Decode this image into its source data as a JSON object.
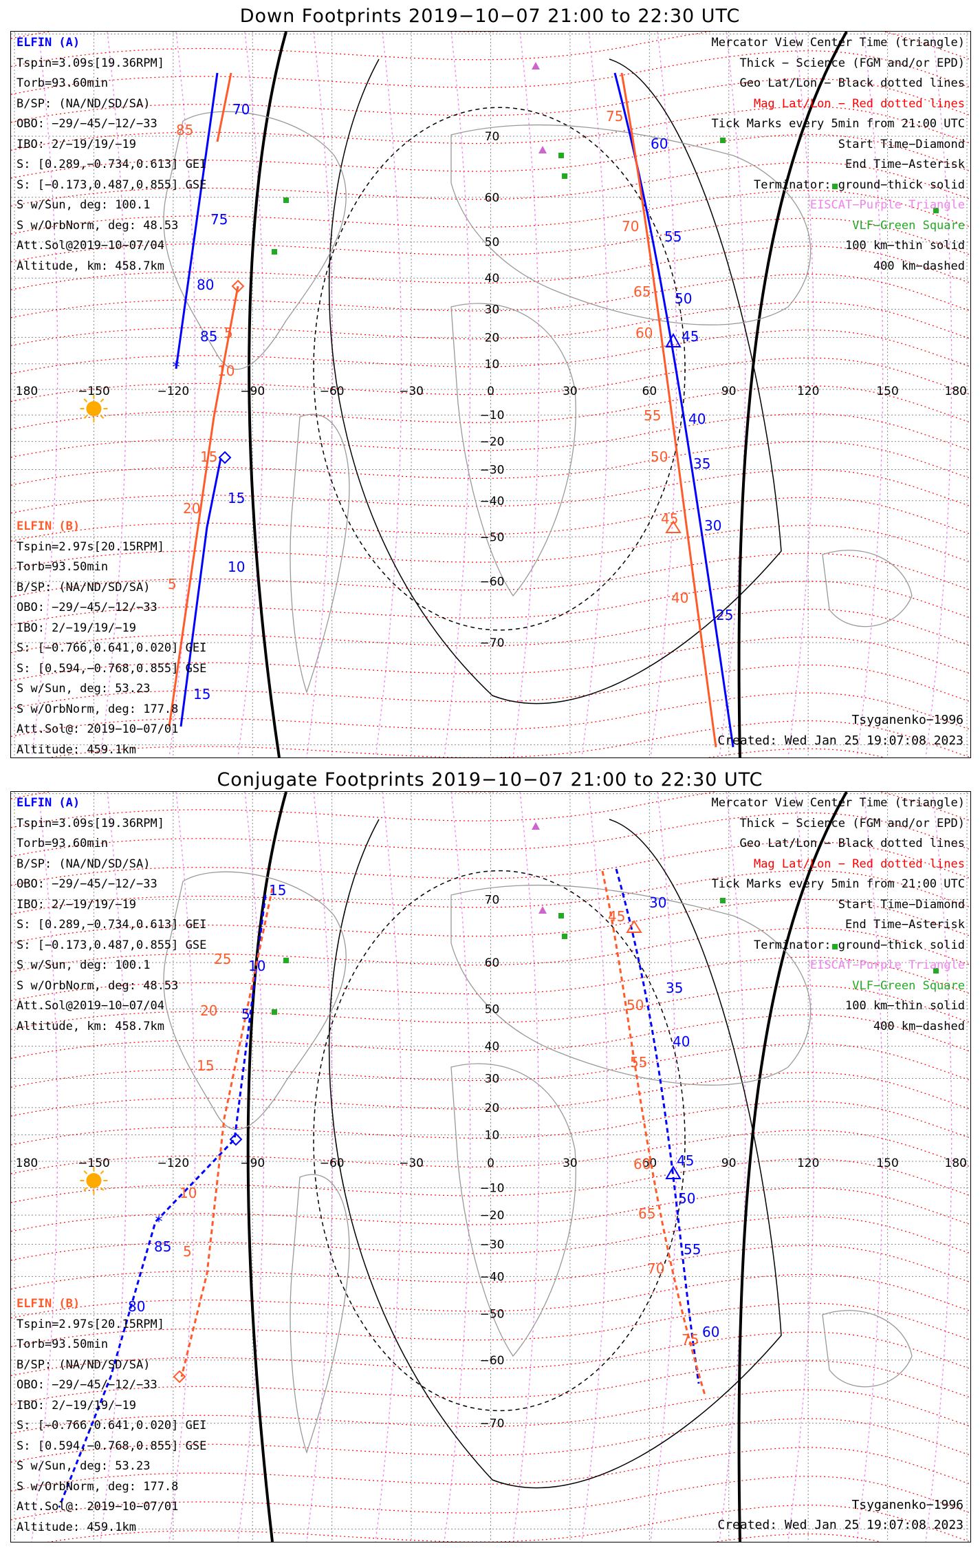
{
  "panels": [
    {
      "title": "Down Footprints 2019−10−07 21:00 to 22:30 UTC",
      "elfin_a": [
        "ELFIN (A)",
        "Tspin=3.09s[19.36RPM]",
        "Torb=93.60min",
        "B/SP: (NA/ND/SD/SA)",
        "OBO: −29/−45/−12/−33",
        "IBO: 2/−19/19/−19",
        "S: [0.289,−0.734,0.613] GEI",
        "S: [−0.173,0.487,0.855] GSE",
        "S w/Sun, deg: 100.1",
        "S w/OrbNorm, deg: 48.53",
        "Att.Sol@2019−10−07/04",
        "Altitude, km: 458.7km"
      ],
      "elfin_b": [
        "ELFIN (B)",
        "Tspin=2.97s[20.15RPM]",
        "Torb=93.50min",
        "B/SP: (NA/ND/SD/SA)",
        "OBO: −29/−45/−12/−33",
        "IBO: 2/−19/19/−19",
        "S: [−0.766,0.641,0.020] GEI",
        "S: [0.594,−0.768,0.855] GSE",
        "S w/Sun, deg: 53.23",
        "S w/OrbNorm, deg: 177.8",
        "Att.Sol@: 2019−10−07/01",
        "Altitude: 459.1km"
      ],
      "legend": [
        "Mercator View Center Time (triangle)",
        "Thick − Science (FGM and/or EPD)",
        "Geo Lat/Lon − Black dotted lines",
        "Mag Lat/Lon − Red dotted lines",
        "Tick Marks every 5min from 21:00 UTC",
        "Start Time−Diamond",
        "End Time−Asterisk",
        "Terminator: ground−thick solid",
        "EISCAT−Purple Triangle",
        "VLF−Green Square",
        "100 km−thin solid",
        "400 km−dashed"
      ],
      "model": "Tsyganenko−1996",
      "created": "Created: Wed Jan 25 19:07:08 2023",
      "track_a_labels": [
        "70",
        "75",
        "80",
        "85",
        "15",
        "10",
        "15"
      ],
      "track_b_labels": [
        "85",
        "5",
        "10",
        "15",
        "20",
        "5"
      ],
      "right_a_labels": [
        "60",
        "55",
        "50",
        "45",
        "40",
        "35",
        "30",
        "25"
      ],
      "right_b_labels": [
        "75",
        "70",
        "65",
        "60",
        "55",
        "50",
        "45",
        "40"
      ]
    },
    {
      "title": "Conjugate Footprints 2019−10−07 21:00 to 22:30 UTC",
      "elfin_a": [
        "ELFIN (A)",
        "Tspin=3.09s[19.36RPM]",
        "Torb=93.60min",
        "B/SP: (NA/ND/SD/SA)",
        "OBO: −29/−45/−12/−33",
        "IBO: 2/−19/19/−19",
        "S: [0.289,−0.734,0.613] GEI",
        "S: [−0.173,0.487,0.855] GSE",
        "S w/Sun, deg: 100.1",
        "S w/OrbNorm, deg: 48.53",
        "Att.Sol@2019−10−07/04",
        "Altitude, km: 458.7km"
      ],
      "elfin_b": [
        "ELFIN (B)",
        "Tspin=2.97s[20.15RPM]",
        "Torb=93.50min",
        "B/SP: (NA/ND/SD/SA)",
        "OBO: −29/−45/−12/−33",
        "IBO: 2/−19/19/−19",
        "S: [−0.766,0.641,0.020] GEI",
        "S: [0.594,−0.768,0.855] GSE",
        "S w/Sun, deg: 53.23",
        "S w/OrbNorm, deg: 177.8",
        "Att.Sol@: 2019−10−07/01",
        "Altitude: 459.1km"
      ],
      "legend": [
        "Mercator View Center Time (triangle)",
        "Thick − Science (FGM and/or EPD)",
        "Geo Lat/Lon − Black dotted lines",
        "Mag Lat/Lon − Red dotted lines",
        "Tick Marks every 5min from 21:00 UTC",
        "Start Time−Diamond",
        "End Time−Asterisk",
        "Terminator: ground−thick solid",
        "EISCAT−Purple Triangle",
        "VLF−Green Square",
        "100 km−thin solid",
        "400 km−dashed"
      ],
      "model": "Tsyganenko−1996",
      "created": "Created: Wed Jan 25 19:07:08 2023",
      "track_a_labels": [
        "15",
        "10",
        "5",
        "85",
        "80"
      ],
      "track_b_labels": [
        "25",
        "20",
        "15",
        "10",
        "5"
      ],
      "right_a_labels": [
        "30",
        "35",
        "40",
        "45",
        "50",
        "55",
        "60"
      ],
      "right_b_labels": [
        "45",
        "50",
        "55",
        "60",
        "65",
        "70",
        "75"
      ]
    }
  ],
  "lon_ticks": [
    "180",
    "−150",
    "−120",
    "−90",
    "−60",
    "−30",
    "0",
    "30",
    "60",
    "90",
    "120",
    "150",
    "180"
  ],
  "lat_ticks": [
    "70",
    "60",
    "50",
    "40",
    "30",
    "20",
    "10",
    "−10",
    "−20",
    "−30",
    "−40",
    "−50",
    "−60",
    "−70"
  ],
  "colors": {
    "elfin_a": "#0000ff",
    "elfin_b": "#ff5a2a",
    "mag_lines": "#ff0000",
    "eiscat": "#cc66cc",
    "vlf": "#22aa22",
    "sun": "#ffaa00"
  }
}
